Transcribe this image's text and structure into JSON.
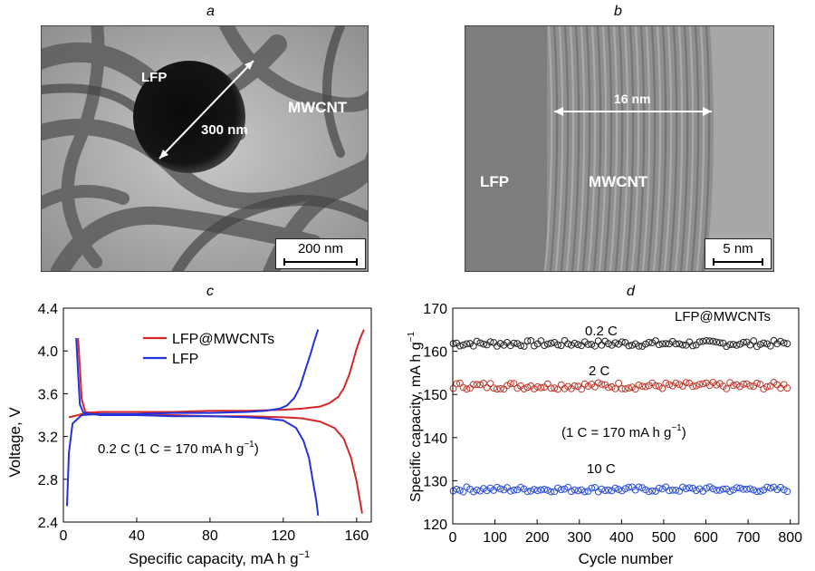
{
  "panels": {
    "a": {
      "label": "a",
      "labels": {
        "lfp": "LFP",
        "size": "300 nm",
        "mwcnt": "MWCNT"
      },
      "scale_bar": "200 nm"
    },
    "b": {
      "label": "b",
      "labels": {
        "lfp": "LFP",
        "mwcnt": "MWCNT",
        "thickness": "16 nm"
      },
      "scale_bar": "5 nm"
    }
  },
  "chart_data": [
    {
      "id": "c",
      "panel_label": "c",
      "type": "line",
      "xlabel": "Specific capacity, mA h g",
      "xlabel_sup": "−1",
      "ylabel": "Voltage, V",
      "xlim": [
        0,
        168
      ],
      "ylim": [
        2.4,
        4.4
      ],
      "xticks": [
        0,
        40,
        80,
        120,
        160
      ],
      "yticks": [
        2.4,
        2.8,
        3.2,
        3.6,
        4.0,
        4.4
      ],
      "ytick_labels": [
        "2.4",
        "2.8",
        "3.2",
        "3.6",
        "4.0",
        "4.4"
      ],
      "legend": [
        "LFP@MWCNTs",
        "LFP"
      ],
      "legend_position": "top-center",
      "annotation": "0.2 C (1 C = 170 mA h g",
      "annotation_sup": "−1",
      "annotation_end": ")",
      "series": [
        {
          "name": "LFP@MWCNTs",
          "color": "#d62728",
          "charge": {
            "x": [
              3,
              8,
              12,
              20,
              40,
              60,
              80,
              100,
              120,
              130,
              140,
              145,
              150,
              153,
              156,
              158,
              160,
              162,
              164
            ],
            "y": [
              3.38,
              3.4,
              3.42,
              3.43,
              3.43,
              3.43,
              3.44,
              3.44,
              3.45,
              3.46,
              3.48,
              3.51,
              3.57,
              3.65,
              3.78,
              3.9,
              4.02,
              4.12,
              4.2
            ]
          },
          "discharge": {
            "x": [
              8,
              9,
              10,
              12,
              20,
              40,
              60,
              80,
              100,
              120,
              130,
              140,
              148,
              153,
              157,
              160,
              162,
              163
            ],
            "y": [
              4.12,
              3.85,
              3.55,
              3.43,
              3.41,
              3.4,
              3.4,
              3.39,
              3.39,
              3.38,
              3.37,
              3.34,
              3.28,
              3.18,
              3.0,
              2.78,
              2.58,
              2.48
            ]
          }
        },
        {
          "name": "LFP",
          "color": "#2233dd",
          "charge": {
            "x": [
              2,
              3,
              5,
              10,
              20,
              40,
              60,
              80,
              100,
              110,
              118,
              122,
              126,
              129,
              132,
              135,
              137,
              139
            ],
            "y": [
              2.55,
              3.05,
              3.32,
              3.4,
              3.41,
              3.41,
              3.42,
              3.42,
              3.43,
              3.44,
              3.46,
              3.49,
              3.56,
              3.66,
              3.82,
              3.98,
              4.1,
              4.2
            ]
          },
          "discharge": {
            "x": [
              7,
              8,
              9,
              11,
              20,
              40,
              60,
              80,
              100,
              110,
              120,
              127,
              131,
              134,
              136,
              138,
              139
            ],
            "y": [
              4.12,
              3.8,
              3.5,
              3.42,
              3.4,
              3.4,
              3.39,
              3.39,
              3.38,
              3.37,
              3.35,
              3.28,
              3.16,
              3.0,
              2.8,
              2.6,
              2.46
            ]
          }
        }
      ]
    },
    {
      "id": "d",
      "panel_label": "d",
      "type": "scatter",
      "xlabel": "Cycle number",
      "ylabel": "Specific capacity, mA h g",
      "ylabel_sup": "−1",
      "xlim": [
        0,
        820
      ],
      "ylim": [
        120,
        170
      ],
      "xticks": [
        0,
        100,
        200,
        300,
        400,
        500,
        600,
        700,
        800
      ],
      "yticks": [
        120,
        130,
        140,
        150,
        160,
        170
      ],
      "x_range": [
        1,
        800
      ],
      "point_step": 8,
      "title_annotation": "LFP@MWCNTs",
      "note": "(1 C = 170 mA h g",
      "note_sup": "−1",
      "note_end": ")",
      "series": [
        {
          "name": "0.2 C",
          "color": "#222222",
          "mean": 161.8,
          "spread": 0.7
        },
        {
          "name": "2 C",
          "color": "#c0392b",
          "mean": 152.0,
          "spread": 0.8
        },
        {
          "name": "10 C",
          "color": "#2b4fd8",
          "mean": 128.0,
          "spread": 0.6
        }
      ]
    }
  ]
}
